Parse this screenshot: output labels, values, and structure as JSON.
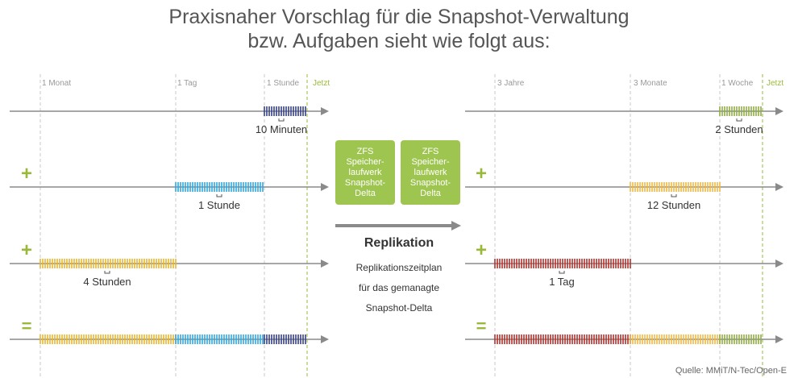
{
  "title": "Praxisnaher Vorschlag für die Snapshot-Verwaltung\nbzw. Aufgaben sieht wie folgt aus:",
  "colors": {
    "axis": "#8a8a8a",
    "accent": "#9ab93b",
    "box": "#9ec54f",
    "navy": "#36408a",
    "cyan": "#31a9df",
    "yellow": "#e7b530",
    "red": "#b32f2a",
    "orange": "#f0b845",
    "olive": "#8fad45"
  },
  "left_panel": {
    "time_labels": [
      "1 Monat",
      "1 Tag",
      "1 Stunde",
      "Jetzt"
    ],
    "rows": [
      {
        "operator": "",
        "caption": "10 Minuten"
      },
      {
        "operator": "+",
        "caption": "1 Stunde"
      },
      {
        "operator": "+",
        "caption": "4 Stunden"
      },
      {
        "operator": "=",
        "caption": ""
      }
    ]
  },
  "right_panel": {
    "time_labels": [
      "3 Jahre",
      "3 Monate",
      "1 Woche",
      "Jetzt"
    ],
    "rows": [
      {
        "operator": "",
        "caption": "2 Stunden"
      },
      {
        "operator": "+",
        "caption": "12 Stunden"
      },
      {
        "operator": "+",
        "caption": "1 Tag"
      },
      {
        "operator": "=",
        "caption": ""
      }
    ]
  },
  "boxes": [
    "ZFS\nSpeicher-\nlaufwerk\nSnapshot-\nDelta",
    "ZFS\nSpeicher-\nlaufwerk\nSnapshot-\nDelta"
  ],
  "replication": {
    "title": "Replikation",
    "description": "Replikationszeitplan\nfür das gemanagte\nSnapshot-Delta"
  },
  "source": "Quelle: MMiT/N-Tec/Open-E"
}
